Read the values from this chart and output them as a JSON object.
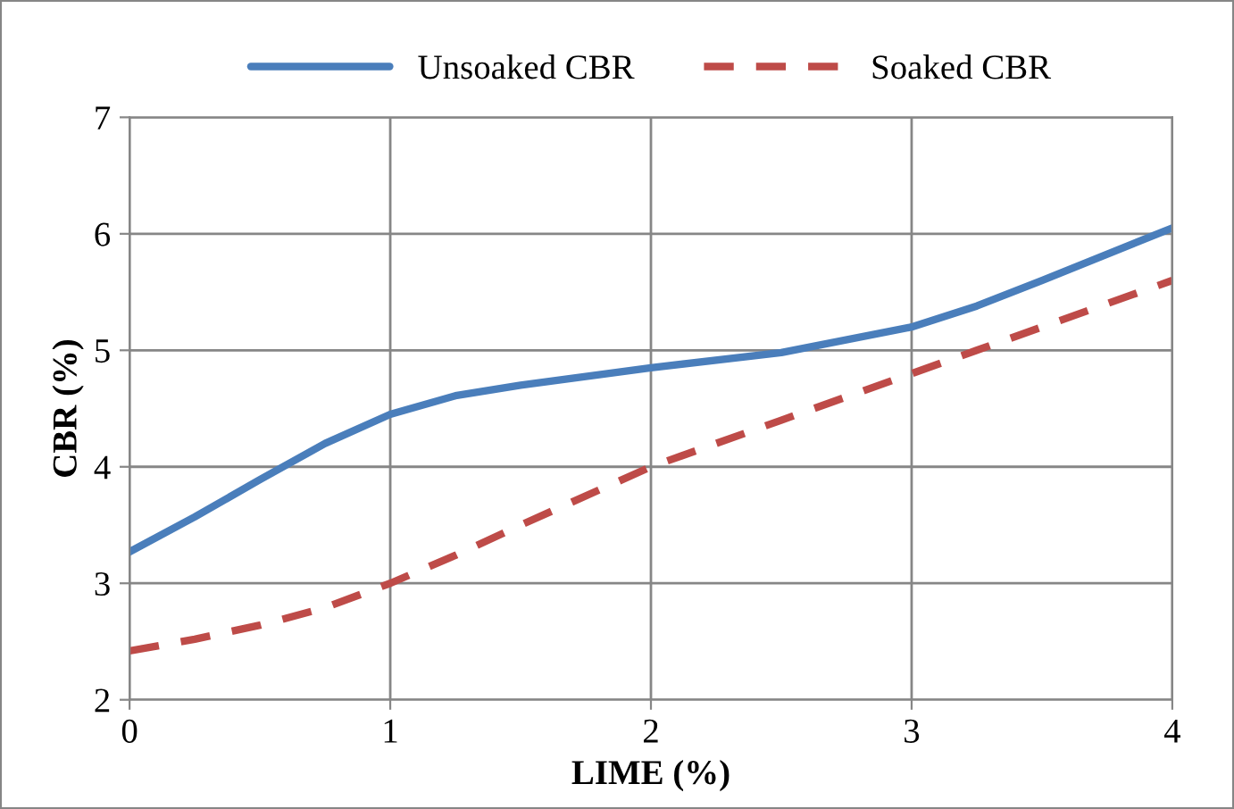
{
  "chart_data": {
    "type": "line",
    "xlabel": "LIME (%)",
    "ylabel": "CBR (%)",
    "x": [
      0,
      0.25,
      0.5,
      0.75,
      1,
      1.25,
      1.5,
      2,
      2.5,
      3,
      3.25,
      3.5,
      4
    ],
    "series": [
      {
        "name": "Unsoaked CBR",
        "color": "#4a7ebb",
        "line_style": "solid",
        "values": [
          3.27,
          3.57,
          3.89,
          4.2,
          4.45,
          4.61,
          4.7,
          4.85,
          4.98,
          5.2,
          5.38,
          5.6,
          6.05
        ]
      },
      {
        "name": "Soaked CBR",
        "color": "#be4b48",
        "line_style": "dashed",
        "values": [
          2.42,
          2.52,
          2.64,
          2.79,
          3.0,
          3.24,
          3.5,
          4.0,
          4.4,
          4.8,
          5.0,
          5.2,
          5.6
        ]
      }
    ],
    "xlim": [
      0,
      4
    ],
    "xticks": [
      0,
      1,
      2,
      3,
      4
    ],
    "ylim": [
      2,
      7
    ],
    "yticks": [
      2,
      3,
      4,
      5,
      6,
      7
    ],
    "grid": true,
    "legend": "top",
    "marker": "none"
  }
}
